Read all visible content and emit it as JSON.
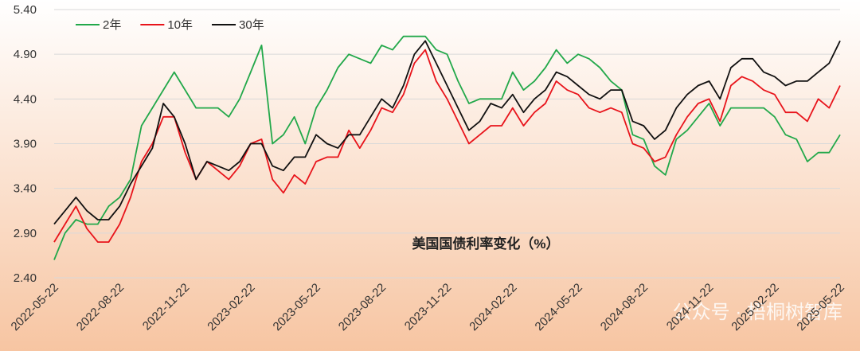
{
  "chart_data": {
    "type": "line",
    "title": "美国国债利率变化（%）",
    "watermark": "公众号 · 梧桐树智库",
    "categories": [
      "2022-05-22",
      null,
      null,
      null,
      null,
      null,
      "2022-08-22",
      null,
      null,
      null,
      null,
      null,
      "2022-11-22",
      null,
      null,
      null,
      null,
      null,
      "2023-02-22",
      null,
      null,
      null,
      null,
      null,
      "2023-05-22",
      null,
      null,
      null,
      null,
      null,
      "2023-08-22",
      null,
      null,
      null,
      null,
      null,
      "2023-11-22",
      null,
      null,
      null,
      null,
      null,
      "2024-02-22",
      null,
      null,
      null,
      null,
      null,
      "2024-05-22",
      null,
      null,
      null,
      null,
      null,
      "2024-08-22",
      null,
      null,
      null,
      null,
      null,
      "2024-11-22",
      null,
      null,
      null,
      null,
      null,
      "2025-02-22",
      null,
      null,
      null,
      null,
      null,
      "2025-05-22"
    ],
    "series": [
      {
        "name": "2年",
        "color": "#22a84a",
        "values": [
          2.6,
          2.9,
          3.05,
          3.0,
          3.0,
          3.2,
          3.3,
          3.5,
          4.1,
          4.3,
          4.5,
          4.7,
          4.5,
          4.3,
          4.3,
          4.3,
          4.2,
          4.4,
          4.7,
          5.0,
          3.9,
          4.0,
          4.2,
          3.9,
          4.3,
          4.5,
          4.75,
          4.9,
          4.85,
          4.8,
          5.0,
          4.95,
          5.1,
          5.1,
          5.1,
          4.95,
          4.9,
          4.6,
          4.35,
          4.4,
          4.4,
          4.4,
          4.7,
          4.5,
          4.6,
          4.75,
          4.95,
          4.8,
          4.9,
          4.85,
          4.75,
          4.6,
          4.5,
          4.0,
          3.95,
          3.65,
          3.55,
          3.95,
          4.05,
          4.2,
          4.35,
          4.1,
          4.3,
          4.3,
          4.3,
          4.3,
          4.2,
          4.0,
          3.95,
          3.7,
          3.8,
          3.8,
          4.0
        ]
      },
      {
        "name": "10年",
        "color": "#e8141b",
        "values": [
          2.8,
          3.0,
          3.2,
          2.95,
          2.8,
          2.8,
          3.0,
          3.3,
          3.7,
          3.9,
          4.2,
          4.2,
          3.8,
          3.5,
          3.7,
          3.6,
          3.5,
          3.65,
          3.9,
          3.95,
          3.5,
          3.35,
          3.55,
          3.45,
          3.7,
          3.75,
          3.75,
          4.05,
          3.85,
          4.05,
          4.3,
          4.25,
          4.45,
          4.8,
          4.95,
          4.6,
          4.4,
          4.15,
          3.9,
          4.0,
          4.1,
          4.1,
          4.3,
          4.1,
          4.25,
          4.35,
          4.6,
          4.5,
          4.45,
          4.3,
          4.25,
          4.3,
          4.25,
          3.9,
          3.85,
          3.7,
          3.75,
          4.0,
          4.2,
          4.35,
          4.4,
          4.15,
          4.55,
          4.65,
          4.6,
          4.5,
          4.45,
          4.25,
          4.25,
          4.15,
          4.4,
          4.3,
          4.55
        ]
      },
      {
        "name": "30年",
        "color": "#111111",
        "values": [
          3.0,
          3.15,
          3.3,
          3.15,
          3.05,
          3.05,
          3.2,
          3.45,
          3.65,
          3.85,
          4.35,
          4.2,
          3.9,
          3.5,
          3.7,
          3.65,
          3.6,
          3.7,
          3.9,
          3.9,
          3.65,
          3.6,
          3.75,
          3.75,
          4.0,
          3.9,
          3.85,
          4.0,
          4.0,
          4.2,
          4.4,
          4.3,
          4.55,
          4.9,
          5.05,
          4.8,
          4.55,
          4.3,
          4.05,
          4.15,
          4.35,
          4.3,
          4.45,
          4.25,
          4.4,
          4.5,
          4.7,
          4.65,
          4.55,
          4.45,
          4.4,
          4.5,
          4.5,
          4.15,
          4.1,
          3.95,
          4.05,
          4.3,
          4.45,
          4.55,
          4.6,
          4.4,
          4.75,
          4.85,
          4.85,
          4.7,
          4.65,
          4.55,
          4.6,
          4.6,
          4.7,
          4.8,
          5.05
        ]
      }
    ],
    "ylim": [
      2.4,
      5.4
    ],
    "yticks": [
      {
        "value": 2.4,
        "label": "2.40"
      },
      {
        "value": 2.9,
        "label": "2.90"
      },
      {
        "value": 3.4,
        "label": "3.40"
      },
      {
        "value": 3.9,
        "label": "3.90"
      },
      {
        "value": 4.4,
        "label": "4.40"
      },
      {
        "value": 4.9,
        "label": "4.90"
      },
      {
        "value": 5.4,
        "label": "5.40"
      }
    ],
    "grid": true,
    "legend": "top-left"
  }
}
